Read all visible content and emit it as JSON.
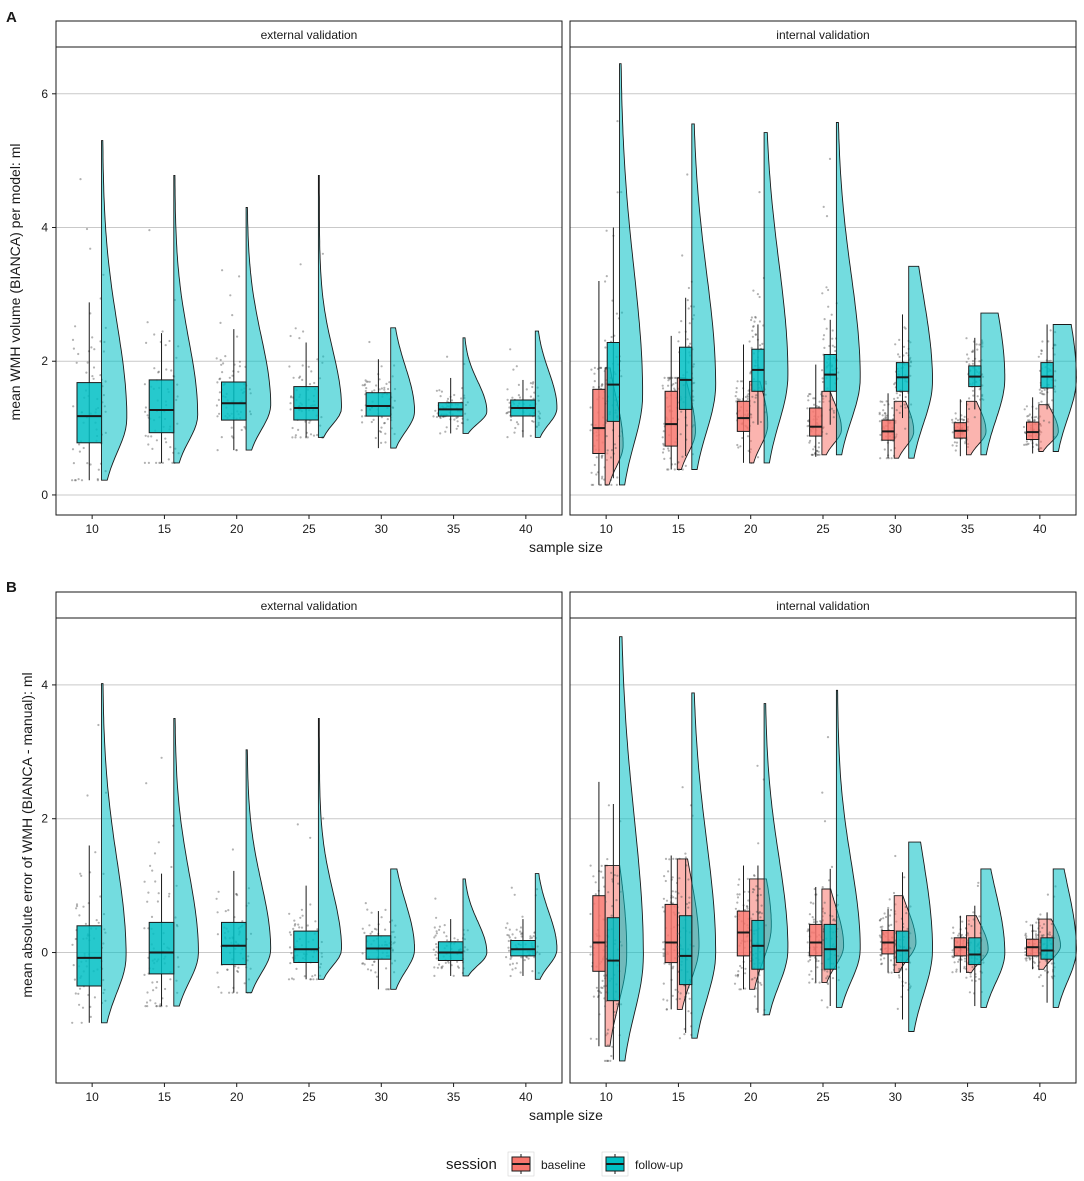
{
  "figure": {
    "session_title": "session",
    "colors": {
      "baseline": "#F8766D",
      "follow_up": "#00BFC4",
      "grid": "#c9c9c9",
      "frame": "#1a1a1a",
      "strip": "#ffffff"
    }
  },
  "chart_data": [
    {
      "type": "raincloud",
      "panel_label": "A",
      "ylabel": "mean WMH volume (BIANCA) per model: ml",
      "xlabel": "sample size",
      "ylim": [
        -0.3,
        6.7
      ],
      "yticks": [
        0,
        2,
        4,
        6
      ],
      "ytick_labels": [
        "0",
        "2",
        "4",
        "6"
      ],
      "categories": [
        "10",
        "15",
        "20",
        "25",
        "30",
        "35",
        "40"
      ],
      "facets": [
        {
          "title": "external validation",
          "series": [
            {
              "name": "follow-up",
              "color": "#00BFC4",
              "boxes": [
                {
                  "q1": 0.78,
                  "median": 1.18,
                  "q3": 1.68,
                  "lo": 0.22,
                  "hi": 2.88
                },
                {
                  "q1": 0.93,
                  "median": 1.27,
                  "q3": 1.72,
                  "lo": 0.48,
                  "hi": 2.42
                },
                {
                  "q1": 1.12,
                  "median": 1.37,
                  "q3": 1.69,
                  "lo": 0.67,
                  "hi": 2.48
                },
                {
                  "q1": 1.12,
                  "median": 1.3,
                  "q3": 1.62,
                  "lo": 0.86,
                  "hi": 2.28
                },
                {
                  "q1": 1.18,
                  "median": 1.33,
                  "q3": 1.53,
                  "lo": 0.7,
                  "hi": 2.03
                },
                {
                  "q1": 1.18,
                  "median": 1.28,
                  "q3": 1.38,
                  "lo": 0.92,
                  "hi": 1.75
                },
                {
                  "q1": 1.18,
                  "median": 1.3,
                  "q3": 1.42,
                  "lo": 0.86,
                  "hi": 1.72
                }
              ],
              "violins": [
                {
                  "min": 0.22,
                  "max": 5.3,
                  "mode": 1.15,
                  "width": 0.35
                },
                {
                  "min": 0.48,
                  "max": 4.78,
                  "mode": 1.2,
                  "width": 0.33
                },
                {
                  "min": 0.67,
                  "max": 4.3,
                  "mode": 1.35,
                  "width": 0.34
                },
                {
                  "min": 0.86,
                  "max": 4.78,
                  "mode": 1.3,
                  "width": 0.32
                },
                {
                  "min": 0.7,
                  "max": 2.5,
                  "mode": 1.25,
                  "width": 0.33
                },
                {
                  "min": 0.92,
                  "max": 2.35,
                  "mode": 1.25,
                  "width": 0.33
                },
                {
                  "min": 0.86,
                  "max": 2.45,
                  "mode": 1.3,
                  "width": 0.3
                }
              ]
            }
          ]
        },
        {
          "title": "internal validation",
          "series": [
            {
              "name": "baseline",
              "color": "#F8766D",
              "boxes": [
                {
                  "q1": 0.62,
                  "median": 1.0,
                  "q3": 1.58,
                  "lo": 0.15,
                  "hi": 3.2
                },
                {
                  "q1": 0.73,
                  "median": 1.06,
                  "q3": 1.55,
                  "lo": 0.38,
                  "hi": 2.38
                },
                {
                  "q1": 0.95,
                  "median": 1.15,
                  "q3": 1.4,
                  "lo": 0.48,
                  "hi": 2.25
                },
                {
                  "q1": 0.88,
                  "median": 1.02,
                  "q3": 1.3,
                  "lo": 0.57,
                  "hi": 1.95
                },
                {
                  "q1": 0.82,
                  "median": 0.95,
                  "q3": 1.12,
                  "lo": 0.55,
                  "hi": 1.52
                },
                {
                  "q1": 0.85,
                  "median": 0.96,
                  "q3": 1.08,
                  "lo": 0.58,
                  "hi": 1.43
                },
                {
                  "q1": 0.83,
                  "median": 0.94,
                  "q3": 1.09,
                  "lo": 0.62,
                  "hi": 1.46
                }
              ],
              "violins": [
                {
                  "min": 0.15,
                  "max": 1.9,
                  "mode": 0.75,
                  "width": 0.25
                },
                {
                  "min": 0.38,
                  "max": 1.75,
                  "mode": 0.95,
                  "width": 0.25
                },
                {
                  "min": 0.48,
                  "max": 1.7,
                  "mode": 1.05,
                  "width": 0.25
                },
                {
                  "min": 0.6,
                  "max": 1.55,
                  "mode": 0.98,
                  "width": 0.27
                },
                {
                  "min": 0.55,
                  "max": 1.4,
                  "mode": 0.95,
                  "width": 0.27
                },
                {
                  "min": 0.6,
                  "max": 1.4,
                  "mode": 0.95,
                  "width": 0.27
                },
                {
                  "min": 0.65,
                  "max": 1.35,
                  "mode": 0.95,
                  "width": 0.27
                }
              ]
            },
            {
              "name": "follow-up",
              "color": "#00BFC4",
              "boxes": [
                {
                  "q1": 1.1,
                  "median": 1.65,
                  "q3": 2.28,
                  "lo": 0.25,
                  "hi": 4.0
                },
                {
                  "q1": 1.28,
                  "median": 1.72,
                  "q3": 2.21,
                  "lo": 0.58,
                  "hi": 2.95
                },
                {
                  "q1": 1.55,
                  "median": 1.87,
                  "q3": 2.18,
                  "lo": 1.05,
                  "hi": 2.55
                },
                {
                  "q1": 1.55,
                  "median": 1.8,
                  "q3": 2.1,
                  "lo": 1.05,
                  "hi": 2.62
                },
                {
                  "q1": 1.55,
                  "median": 1.76,
                  "q3": 1.98,
                  "lo": 1.15,
                  "hi": 2.7
                },
                {
                  "q1": 1.62,
                  "median": 1.77,
                  "q3": 1.93,
                  "lo": 1.28,
                  "hi": 2.35
                },
                {
                  "q1": 1.6,
                  "median": 1.77,
                  "q3": 1.98,
                  "lo": 1.28,
                  "hi": 2.55
                }
              ],
              "violins": [
                {
                  "min": 0.15,
                  "max": 6.45,
                  "mode": 1.5,
                  "width": 0.32
                },
                {
                  "min": 0.38,
                  "max": 5.55,
                  "mode": 1.65,
                  "width": 0.33
                },
                {
                  "min": 0.48,
                  "max": 5.42,
                  "mode": 1.8,
                  "width": 0.33
                },
                {
                  "min": 0.6,
                  "max": 5.57,
                  "mode": 1.75,
                  "width": 0.33
                },
                {
                  "min": 0.55,
                  "max": 3.42,
                  "mode": 1.7,
                  "width": 0.33
                },
                {
                  "min": 0.6,
                  "max": 2.72,
                  "mode": 1.75,
                  "width": 0.33
                },
                {
                  "min": 0.65,
                  "max": 2.55,
                  "mode": 1.75,
                  "width": 0.32
                }
              ]
            }
          ]
        }
      ]
    },
    {
      "type": "raincloud",
      "panel_label": "B",
      "ylabel": "mean absolute error of WMH (BIANCA - manual): ml",
      "xlabel": "sample size",
      "ylim": [
        -1.95,
        5.0
      ],
      "yticks": [
        0,
        2,
        4
      ],
      "ytick_labels": [
        "0",
        "2",
        "4"
      ],
      "categories": [
        "10",
        "15",
        "20",
        "25",
        "30",
        "35",
        "40"
      ],
      "facets": [
        {
          "title": "external validation",
          "series": [
            {
              "name": "follow-up",
              "color": "#00BFC4",
              "boxes": [
                {
                  "q1": -0.5,
                  "median": -0.08,
                  "q3": 0.4,
                  "lo": -1.05,
                  "hi": 1.6
                },
                {
                  "q1": -0.32,
                  "median": 0.0,
                  "q3": 0.45,
                  "lo": -0.8,
                  "hi": 1.18
                },
                {
                  "q1": -0.18,
                  "median": 0.1,
                  "q3": 0.45,
                  "lo": -0.6,
                  "hi": 1.22
                },
                {
                  "q1": -0.15,
                  "median": 0.05,
                  "q3": 0.32,
                  "lo": -0.4,
                  "hi": 1.0
                },
                {
                  "q1": -0.1,
                  "median": 0.06,
                  "q3": 0.25,
                  "lo": -0.55,
                  "hi": 0.62
                },
                {
                  "q1": -0.12,
                  "median": 0.0,
                  "q3": 0.16,
                  "lo": -0.35,
                  "hi": 0.5
                },
                {
                  "q1": -0.05,
                  "median": 0.05,
                  "q3": 0.18,
                  "lo": -0.35,
                  "hi": 0.5
                }
              ],
              "violins": [
                {
                  "min": -1.05,
                  "max": 4.02,
                  "mode": -0.05,
                  "width": 0.34
                },
                {
                  "min": -0.8,
                  "max": 3.5,
                  "mode": 0.0,
                  "width": 0.34
                },
                {
                  "min": -0.6,
                  "max": 3.03,
                  "mode": 0.05,
                  "width": 0.34
                },
                {
                  "min": -0.4,
                  "max": 3.5,
                  "mode": 0.05,
                  "width": 0.32
                },
                {
                  "min": -0.55,
                  "max": 1.25,
                  "mode": 0.05,
                  "width": 0.33
                },
                {
                  "min": -0.35,
                  "max": 1.1,
                  "mode": 0.0,
                  "width": 0.33
                },
                {
                  "min": -0.4,
                  "max": 1.18,
                  "mode": 0.05,
                  "width": 0.3
                }
              ]
            }
          ]
        },
        {
          "title": "internal validation",
          "series": [
            {
              "name": "baseline",
              "color": "#F8766D",
              "boxes": [
                {
                  "q1": -0.28,
                  "median": 0.15,
                  "q3": 0.85,
                  "lo": -1.4,
                  "hi": 2.55
                },
                {
                  "q1": -0.15,
                  "median": 0.15,
                  "q3": 0.72,
                  "lo": -0.85,
                  "hi": 1.45
                },
                {
                  "q1": -0.05,
                  "median": 0.3,
                  "q3": 0.62,
                  "lo": -0.55,
                  "hi": 1.3
                },
                {
                  "q1": -0.05,
                  "median": 0.15,
                  "q3": 0.42,
                  "lo": -0.45,
                  "hi": 0.98
                },
                {
                  "q1": -0.02,
                  "median": 0.15,
                  "q3": 0.33,
                  "lo": -0.3,
                  "hi": 0.65
                },
                {
                  "q1": -0.05,
                  "median": 0.08,
                  "q3": 0.22,
                  "lo": -0.3,
                  "hi": 0.55
                },
                {
                  "q1": -0.05,
                  "median": 0.08,
                  "q3": 0.2,
                  "lo": -0.25,
                  "hi": 0.42
                }
              ],
              "violins": [
                {
                  "min": -1.4,
                  "max": 1.3,
                  "mode": 0.0,
                  "width": 0.3
                },
                {
                  "min": -0.85,
                  "max": 1.4,
                  "mode": 0.1,
                  "width": 0.3
                },
                {
                  "min": -0.55,
                  "max": 1.1,
                  "mode": 0.4,
                  "width": 0.3
                },
                {
                  "min": -0.45,
                  "max": 0.95,
                  "mode": 0.1,
                  "width": 0.3
                },
                {
                  "min": -0.3,
                  "max": 0.85,
                  "mode": 0.15,
                  "width": 0.3
                },
                {
                  "min": -0.3,
                  "max": 0.55,
                  "mode": 0.05,
                  "width": 0.3
                },
                {
                  "min": -0.25,
                  "max": 0.5,
                  "mode": 0.1,
                  "width": 0.3
                }
              ]
            },
            {
              "name": "follow-up",
              "color": "#00BFC4",
              "boxes": [
                {
                  "q1": -0.72,
                  "median": -0.12,
                  "q3": 0.52,
                  "lo": -1.6,
                  "hi": 2.22
                },
                {
                  "q1": -0.48,
                  "median": -0.05,
                  "q3": 0.55,
                  "lo": -1.2,
                  "hi": 1.4
                },
                {
                  "q1": -0.25,
                  "median": 0.1,
                  "q3": 0.48,
                  "lo": -0.9,
                  "hi": 1.3
                },
                {
                  "q1": -0.25,
                  "median": 0.05,
                  "q3": 0.42,
                  "lo": -0.8,
                  "hi": 1.25
                },
                {
                  "q1": -0.15,
                  "median": 0.03,
                  "q3": 0.32,
                  "lo": -1.0,
                  "hi": 1.2
                },
                {
                  "q1": -0.18,
                  "median": -0.03,
                  "q3": 0.22,
                  "lo": -0.8,
                  "hi": 0.7
                },
                {
                  "q1": -0.1,
                  "median": 0.03,
                  "q3": 0.22,
                  "lo": -0.75,
                  "hi": 0.6
                }
              ],
              "violins": [
                {
                  "min": -1.62,
                  "max": 4.72,
                  "mode": -0.05,
                  "width": 0.33
                },
                {
                  "min": -1.28,
                  "max": 3.88,
                  "mode": 0.0,
                  "width": 0.33
                },
                {
                  "min": -0.93,
                  "max": 3.72,
                  "mode": 0.05,
                  "width": 0.33
                },
                {
                  "min": -0.82,
                  "max": 3.92,
                  "mode": 0.05,
                  "width": 0.33
                },
                {
                  "min": -1.18,
                  "max": 1.65,
                  "mode": 0.05,
                  "width": 0.33
                },
                {
                  "min": -0.82,
                  "max": 1.25,
                  "mode": 0.0,
                  "width": 0.33
                },
                {
                  "min": -0.82,
                  "max": 1.25,
                  "mode": 0.05,
                  "width": 0.32
                }
              ]
            }
          ]
        }
      ]
    }
  ],
  "legend": {
    "title": "session",
    "items": [
      {
        "label": "baseline",
        "color": "#F8766D"
      },
      {
        "label": "follow-up",
        "color": "#00BFC4"
      }
    ]
  }
}
